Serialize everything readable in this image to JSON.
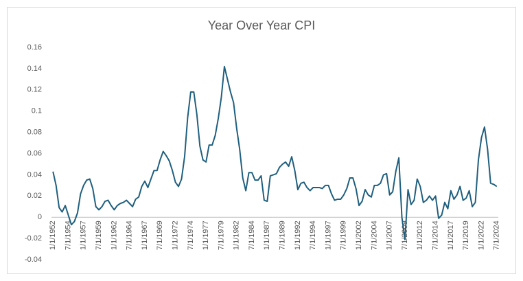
{
  "chart_data": {
    "type": "line",
    "title": "Year Over Year CPI",
    "color": "#1f5f7d",
    "grid": false,
    "ylim": [
      -0.04,
      0.16
    ],
    "yticks": [
      -0.04,
      -0.02,
      0,
      0.02,
      0.04,
      0.06,
      0.08,
      0.1,
      0.12,
      0.14,
      0.16
    ],
    "categories": [
      "1/1/1952",
      null,
      null,
      null,
      null,
      "7/1/1954",
      null,
      null,
      null,
      null,
      "1/1/1957",
      null,
      null,
      null,
      null,
      "7/1/1959",
      null,
      null,
      null,
      null,
      "1/1/1962",
      null,
      null,
      null,
      null,
      "7/1/1964",
      null,
      null,
      null,
      null,
      "1/1/1967",
      null,
      null,
      null,
      null,
      "7/1/1969",
      null,
      null,
      null,
      null,
      "1/1/1972",
      null,
      null,
      null,
      null,
      "7/1/1974",
      null,
      null,
      null,
      null,
      "1/1/1977",
      null,
      null,
      null,
      null,
      "7/1/1979",
      null,
      null,
      null,
      null,
      "1/1/1982",
      null,
      null,
      null,
      null,
      "7/1/1984",
      null,
      null,
      null,
      null,
      "1/1/1987",
      null,
      null,
      null,
      null,
      "7/1/1989",
      null,
      null,
      null,
      null,
      "1/1/1992",
      null,
      null,
      null,
      null,
      "7/1/1994",
      null,
      null,
      null,
      null,
      "1/1/1997",
      null,
      null,
      null,
      null,
      "7/1/1999",
      null,
      null,
      null,
      null,
      "1/1/2002",
      null,
      null,
      null,
      null,
      "7/1/2004",
      null,
      null,
      null,
      null,
      "1/1/2007",
      null,
      null,
      null,
      null,
      "7/1/2009",
      null,
      null,
      null,
      null,
      "1/1/2012",
      null,
      null,
      null,
      null,
      "7/1/2014",
      null,
      null,
      null,
      null,
      "1/1/2017",
      null,
      null,
      null,
      null,
      "7/1/2019",
      null,
      null,
      null,
      null,
      "1/1/2022",
      null,
      null,
      null,
      null,
      "7/1/2024"
    ],
    "values": [
      0.043,
      0.03,
      0.009,
      0.005,
      0.011,
      0.002,
      -0.007,
      -0.004,
      0.004,
      0.022,
      0.03,
      0.035,
      0.036,
      0.027,
      0.01,
      0.007,
      0.01,
      0.015,
      0.016,
      0.011,
      0.007,
      0.011,
      0.013,
      0.014,
      0.016,
      0.013,
      0.01,
      0.017,
      0.019,
      0.029,
      0.034,
      0.028,
      0.036,
      0.044,
      0.044,
      0.054,
      0.062,
      0.058,
      0.053,
      0.044,
      0.033,
      0.029,
      0.036,
      0.057,
      0.094,
      0.118,
      0.118,
      0.097,
      0.067,
      0.054,
      0.052,
      0.068,
      0.068,
      0.077,
      0.093,
      0.113,
      0.142,
      0.13,
      0.118,
      0.108,
      0.084,
      0.064,
      0.037,
      0.025,
      0.042,
      0.042,
      0.035,
      0.035,
      0.039,
      0.016,
      0.015,
      0.039,
      0.04,
      0.041,
      0.047,
      0.05,
      0.052,
      0.048,
      0.057,
      0.044,
      0.026,
      0.032,
      0.033,
      0.028,
      0.025,
      0.028,
      0.028,
      0.028,
      0.027,
      0.03,
      0.03,
      0.022,
      0.016,
      0.017,
      0.017,
      0.021,
      0.027,
      0.037,
      0.037,
      0.027,
      0.011,
      0.015,
      0.026,
      0.021,
      0.019,
      0.03,
      0.03,
      0.032,
      0.04,
      0.041,
      0.021,
      0.024,
      0.043,
      0.056,
      0,
      -0.021,
      0.026,
      0.012,
      0.016,
      0.036,
      0.029,
      0.014,
      0.016,
      0.02,
      0.016,
      0.02,
      -0.001,
      0.002,
      0.014,
      0.008,
      0.025,
      0.017,
      0.021,
      0.029,
      0.016,
      0.018,
      0.025,
      0.01,
      0.014,
      0.054,
      0.075,
      0.085,
      0.064,
      0.032,
      0.031,
      0.029
    ]
  }
}
